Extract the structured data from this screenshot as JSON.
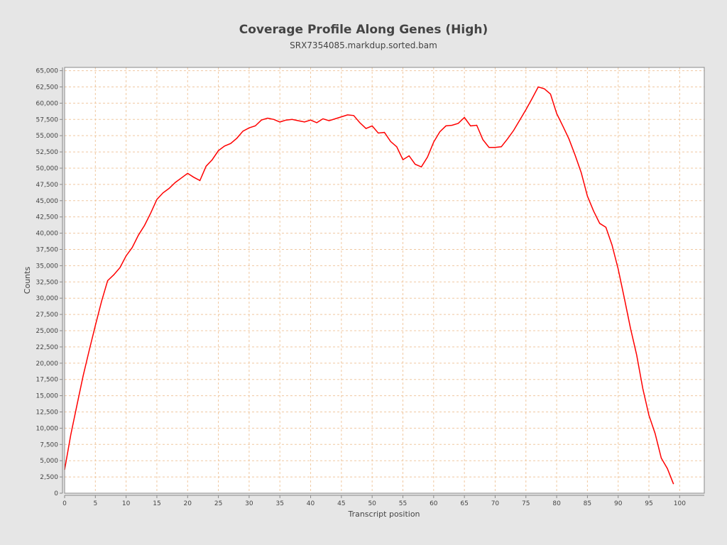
{
  "chart_data": {
    "type": "line",
    "title": "Coverage Profile Along Genes (High)",
    "subtitle": "SRX7354085.markdup.sorted.bam",
    "xlabel": "Transcript position",
    "ylabel": "Counts",
    "xlim": [
      0,
      104
    ],
    "ylim": [
      0,
      65500
    ],
    "xticks": [
      0,
      5,
      10,
      15,
      20,
      25,
      30,
      35,
      40,
      45,
      50,
      55,
      60,
      65,
      70,
      75,
      80,
      85,
      90,
      95,
      100
    ],
    "yticks": [
      0,
      2500,
      5000,
      7500,
      10000,
      12500,
      15000,
      17500,
      20000,
      22500,
      25000,
      27500,
      30000,
      32500,
      35000,
      37500,
      40000,
      42500,
      45000,
      47500,
      50000,
      52500,
      55000,
      57500,
      60000,
      62500,
      65000
    ],
    "grid": true,
    "line_color": "#ff0000",
    "grid_color": "#f0c8a0",
    "x": [
      0,
      1,
      2,
      3,
      4,
      5,
      6,
      7,
      8,
      9,
      10,
      11,
      12,
      13,
      14,
      15,
      16,
      17,
      18,
      19,
      20,
      21,
      22,
      23,
      24,
      25,
      26,
      27,
      28,
      29,
      30,
      31,
      32,
      33,
      34,
      35,
      36,
      37,
      38,
      39,
      40,
      41,
      42,
      43,
      44,
      45,
      46,
      47,
      48,
      49,
      50,
      51,
      52,
      53,
      54,
      55,
      56,
      57,
      58,
      59,
      60,
      61,
      62,
      63,
      64,
      65,
      66,
      67,
      68,
      69,
      70,
      71,
      72,
      73,
      74,
      75,
      76,
      77,
      78,
      79,
      80,
      81,
      82,
      83,
      84,
      85,
      86,
      87,
      88,
      89,
      90,
      91,
      92,
      93,
      94,
      95,
      96,
      97,
      98,
      99
    ],
    "values": [
      3600,
      9000,
      13500,
      18000,
      22000,
      25800,
      29500,
      32700,
      33600,
      34700,
      36500,
      37800,
      39700,
      41200,
      43100,
      45200,
      46200,
      46900,
      47800,
      48500,
      49200,
      48600,
      48100,
      50300,
      51300,
      52700,
      53400,
      53800,
      54600,
      55700,
      56200,
      56500,
      57400,
      57700,
      57500,
      57100,
      57400,
      57500,
      57300,
      57100,
      57400,
      57000,
      57600,
      57300,
      57600,
      57900,
      58200,
      58100,
      57000,
      56100,
      56500,
      55400,
      55500,
      54100,
      53300,
      51300,
      51900,
      50600,
      50200,
      51700,
      54000,
      55600,
      56500,
      56600,
      56900,
      57800,
      56500,
      56600,
      54400,
      53200,
      53200,
      53300,
      54500,
      55800,
      57400,
      59000,
      60700,
      62500,
      62200,
      61400,
      58400,
      56500,
      54500,
      52000,
      49300,
      45700,
      43400,
      41500,
      40900,
      38200,
      34500,
      30000,
      25400,
      21300,
      16100,
      12000,
      9200,
      5400,
      3800,
      1400
    ]
  }
}
